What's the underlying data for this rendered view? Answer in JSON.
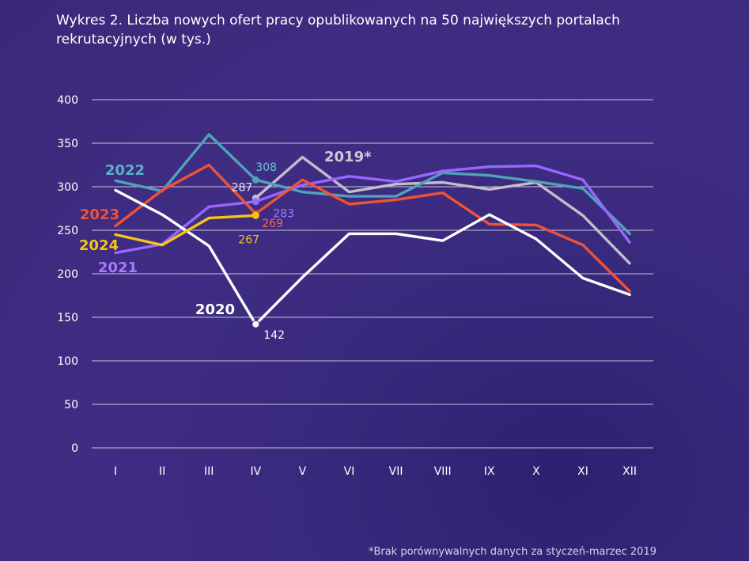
{
  "title": "Wykres 2. Liczba nowych ofert pracy opublikowanych na 50 największych portalach rekrutacyjnych (w tys.)",
  "footnote": "*Brak porównywalnych danych za styczeń-marzec 2019",
  "chart_data": {
    "type": "line",
    "title": "Wykres 2. Liczba nowych ofert pracy opublikowanych na 50 największych portalach rekrutacyjnych (w tys.)",
    "xlabel": "",
    "ylabel": "",
    "categories": [
      "I",
      "II",
      "III",
      "IV",
      "V",
      "VI",
      "VII",
      "VIII",
      "IX",
      "X",
      "XI",
      "XII"
    ],
    "y_ticks": [
      0,
      50,
      100,
      150,
      200,
      250,
      300,
      350,
      400
    ],
    "ylim": [
      0,
      400
    ],
    "grid": true,
    "series": [
      {
        "name": "2019*",
        "color": "#c3bec9",
        "values": [
          null,
          null,
          null,
          287,
          334,
          294,
          303,
          305,
          297,
          305,
          267,
          212
        ],
        "label": "2019*",
        "annotations": [
          {
            "index": 3,
            "text": "287"
          }
        ]
      },
      {
        "name": "2020",
        "color": "#ffffff",
        "values": [
          296,
          268,
          232,
          142,
          196,
          246,
          246,
          238,
          268,
          240,
          195,
          176
        ],
        "label": "2020",
        "annotations": [
          {
            "index": 3,
            "text": "142"
          }
        ]
      },
      {
        "name": "2021",
        "color": "#9966ff",
        "values": [
          224,
          234,
          277,
          283,
          302,
          312,
          306,
          318,
          323,
          324,
          308,
          236
        ],
        "label": "2021",
        "annotations": [
          {
            "index": 3,
            "text": "283"
          }
        ]
      },
      {
        "name": "2022",
        "color": "#4fa3b8",
        "values": [
          307,
          295,
          360,
          308,
          294,
          289,
          289,
          316,
          313,
          306,
          298,
          246
        ],
        "label": "2022",
        "annotations": [
          {
            "index": 3,
            "text": "308"
          }
        ]
      },
      {
        "name": "2023",
        "color": "#ee5337",
        "values": [
          255,
          296,
          325,
          269,
          308,
          280,
          285,
          293,
          257,
          256,
          233,
          180
        ],
        "label": "2023",
        "annotations": [
          {
            "index": 3,
            "text": "269"
          }
        ]
      },
      {
        "name": "2024",
        "color": "#f5c518",
        "values": [
          245,
          233,
          264,
          267,
          null,
          null,
          null,
          null,
          null,
          null,
          null,
          null
        ],
        "label": "2024",
        "annotations": [
          {
            "index": 3,
            "text": "267"
          }
        ]
      }
    ]
  }
}
